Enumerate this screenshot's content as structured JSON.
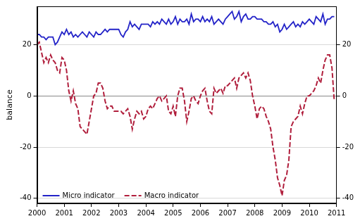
{
  "chart_data": {
    "type": "line",
    "y_label": "balance",
    "x": [
      2000,
      2000.083,
      2000.167,
      2000.25,
      2000.333,
      2000.417,
      2000.5,
      2000.583,
      2000.667,
      2000.75,
      2000.833,
      2000.917,
      2001,
      2001.083,
      2001.167,
      2001.25,
      2001.333,
      2001.417,
      2001.5,
      2001.583,
      2001.667,
      2001.75,
      2001.833,
      2001.917,
      2002,
      2002.083,
      2002.167,
      2002.25,
      2002.333,
      2002.417,
      2002.5,
      2002.583,
      2002.667,
      2002.75,
      2002.833,
      2002.917,
      2003,
      2003.083,
      2003.167,
      2003.25,
      2003.333,
      2003.417,
      2003.5,
      2003.583,
      2003.667,
      2003.75,
      2003.833,
      2003.917,
      2004,
      2004.083,
      2004.167,
      2004.25,
      2004.333,
      2004.417,
      2004.5,
      2004.583,
      2004.667,
      2004.75,
      2004.833,
      2004.917,
      2005,
      2005.083,
      2005.167,
      2005.25,
      2005.333,
      2005.417,
      2005.5,
      2005.583,
      2005.667,
      2005.75,
      2005.833,
      2005.917,
      2006,
      2006.083,
      2006.167,
      2006.25,
      2006.333,
      2006.417,
      2006.5,
      2006.583,
      2006.667,
      2006.75,
      2006.833,
      2006.917,
      2007,
      2007.083,
      2007.167,
      2007.25,
      2007.333,
      2007.417,
      2007.5,
      2007.583,
      2007.667,
      2007.75,
      2007.833,
      2007.917,
      2008,
      2008.083,
      2008.167,
      2008.25,
      2008.333,
      2008.417,
      2008.5,
      2008.583,
      2008.667,
      2008.75,
      2008.833,
      2008.917,
      2009,
      2009.083,
      2009.167,
      2009.25,
      2009.333,
      2009.417,
      2009.5,
      2009.583,
      2009.667,
      2009.75,
      2009.833,
      2009.917,
      2010,
      2010.083,
      2010.167,
      2010.25,
      2010.333,
      2010.417,
      2010.5,
      2010.583,
      2010.667,
      2010.75,
      2010.833,
      2010.917
    ],
    "series": [
      {
        "name": "Micro indicator",
        "color": "#2323c8",
        "line_style": "solid",
        "values": [
          24,
          24,
          23,
          23,
          22,
          23,
          23,
          23,
          20,
          21,
          23,
          25,
          24,
          26,
          24,
          25,
          23,
          24,
          23,
          24,
          25,
          24,
          23,
          25,
          24,
          23,
          25,
          24,
          24,
          25,
          26,
          25,
          26,
          26,
          26,
          26,
          26,
          24,
          23,
          25,
          26,
          29,
          27,
          28,
          27,
          26,
          28,
          28,
          28,
          28,
          27,
          29,
          28,
          29,
          28,
          30,
          29,
          28,
          30,
          28,
          29,
          31,
          28,
          30,
          29,
          29,
          30,
          28,
          32,
          29,
          30,
          30,
          29,
          31,
          29,
          30,
          29,
          31,
          28,
          29,
          30,
          29,
          28,
          30,
          31,
          32,
          33,
          30,
          31,
          33,
          29,
          31,
          32,
          30,
          30,
          31,
          31,
          30,
          30,
          30,
          29,
          29,
          28,
          28,
          29,
          27,
          28,
          25,
          26,
          28,
          26,
          27,
          28,
          29,
          27,
          28,
          27,
          29,
          28,
          29,
          30,
          29,
          28,
          31,
          30,
          29,
          32,
          28,
          30,
          30,
          31,
          31
        ]
      },
      {
        "name": "Macro indicator",
        "color": "#b01e3c",
        "line_style": "dashed",
        "values": [
          20,
          21,
          17,
          13,
          15,
          13,
          16,
          14,
          13,
          10,
          9,
          15,
          14,
          10,
          2,
          -2,
          2,
          -3,
          -5,
          -12,
          -13,
          -14,
          -15,
          -10,
          -5,
          0,
          1,
          5,
          5,
          3,
          -2,
          -5,
          -4,
          -4,
          -6,
          -6,
          -6,
          -6,
          -7,
          -6,
          -5,
          -8,
          -13,
          -9,
          -6,
          -7,
          -6,
          -9,
          -8,
          -5,
          -4,
          -5,
          -3,
          -1,
          0,
          -2,
          -1,
          0,
          -6,
          -7,
          -4,
          -8,
          0,
          3,
          3,
          -2,
          -10,
          -6,
          -1,
          0,
          -2,
          -3,
          0,
          2,
          3,
          -2,
          -6,
          -7,
          3,
          1,
          2,
          3,
          1,
          4,
          4,
          5,
          6,
          7,
          3,
          7,
          8,
          9,
          7,
          9,
          6,
          0,
          -4,
          -9,
          -5,
          -4,
          -5,
          -8,
          -10,
          -13,
          -20,
          -25,
          -32,
          -35,
          -39,
          -33,
          -31,
          -25,
          -12,
          -10,
          -9,
          -8,
          -4,
          -7,
          -3,
          0,
          0,
          1,
          2,
          4,
          7,
          5,
          10,
          14,
          16,
          16,
          11,
          -2
        ]
      }
    ],
    "xlim": [
      2000,
      2011
    ],
    "xticks": [
      2000,
      2001,
      2002,
      2003,
      2004,
      2005,
      2006,
      2007,
      2008,
      2009,
      2010,
      2011
    ],
    "ylim": [
      -42,
      35
    ],
    "yticks": [
      -40,
      -20,
      0,
      20
    ],
    "y2lim": [
      -42,
      35
    ],
    "y2ticks": [
      -40,
      -20,
      0,
      20
    ],
    "grid": true,
    "legend": "lower left"
  }
}
